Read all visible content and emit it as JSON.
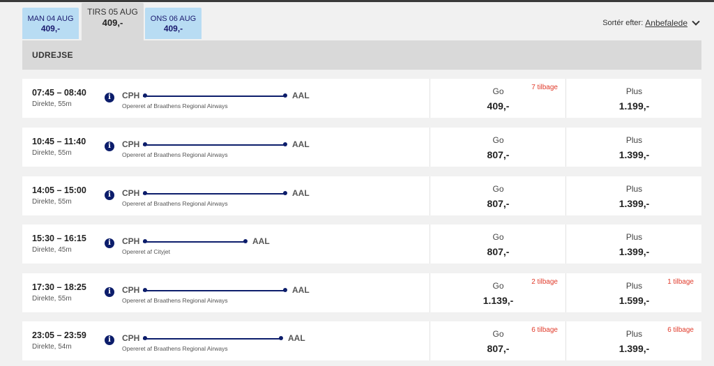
{
  "tabs": [
    {
      "date": "MAN 04 AUG",
      "price": "409,-"
    },
    {
      "date": "TIRS 05 AUG",
      "price": "409,-"
    },
    {
      "date": "ONS 06 AUG",
      "price": "409,-"
    }
  ],
  "sort": {
    "label": "Sortér efter:",
    "value": "Anbefalede"
  },
  "section": {
    "title": "UDREJSE"
  },
  "info_glyph": "i",
  "flights": [
    {
      "time": "07:45 – 08:40",
      "duration": "Direkte, 55m",
      "from": "CPH",
      "to": "AAL",
      "operator": "Opereret af Braathens Regional Airways",
      "go": {
        "name": "Go",
        "price": "409,-",
        "left": "7 tilbage"
      },
      "plus": {
        "name": "Plus",
        "price": "1.199,-",
        "left": ""
      }
    },
    {
      "time": "10:45 – 11:40",
      "duration": "Direkte, 55m",
      "from": "CPH",
      "to": "AAL",
      "operator": "Opereret af Braathens Regional Airways",
      "go": {
        "name": "Go",
        "price": "807,-",
        "left": ""
      },
      "plus": {
        "name": "Plus",
        "price": "1.399,-",
        "left": ""
      }
    },
    {
      "time": "14:05 – 15:00",
      "duration": "Direkte, 55m",
      "from": "CPH",
      "to": "AAL",
      "operator": "Opereret af Braathens Regional Airways",
      "go": {
        "name": "Go",
        "price": "807,-",
        "left": ""
      },
      "plus": {
        "name": "Plus",
        "price": "1.399,-",
        "left": ""
      }
    },
    {
      "time": "15:30 – 16:15",
      "duration": "Direkte, 45m",
      "from": "CPH",
      "to": "AAL",
      "operator": "Opereret af Cityjet",
      "go": {
        "name": "Go",
        "price": "807,-",
        "left": ""
      },
      "plus": {
        "name": "Plus",
        "price": "1.399,-",
        "left": ""
      }
    },
    {
      "time": "17:30 – 18:25",
      "duration": "Direkte, 55m",
      "from": "CPH",
      "to": "AAL",
      "operator": "Opereret af Braathens Regional Airways",
      "go": {
        "name": "Go",
        "price": "1.139,-",
        "left": "2 tilbage"
      },
      "plus": {
        "name": "Plus",
        "price": "1.599,-",
        "left": "1 tilbage"
      }
    },
    {
      "time": "23:05 – 23:59",
      "duration": "Direkte, 54m",
      "from": "CPH",
      "to": "AAL",
      "operator": "Opereret af Braathens Regional Airways",
      "go": {
        "name": "Go",
        "price": "807,-",
        "left": "6 tilbage"
      },
      "plus": {
        "name": "Plus",
        "price": "1.399,-",
        "left": "6 tilbage"
      }
    }
  ]
}
